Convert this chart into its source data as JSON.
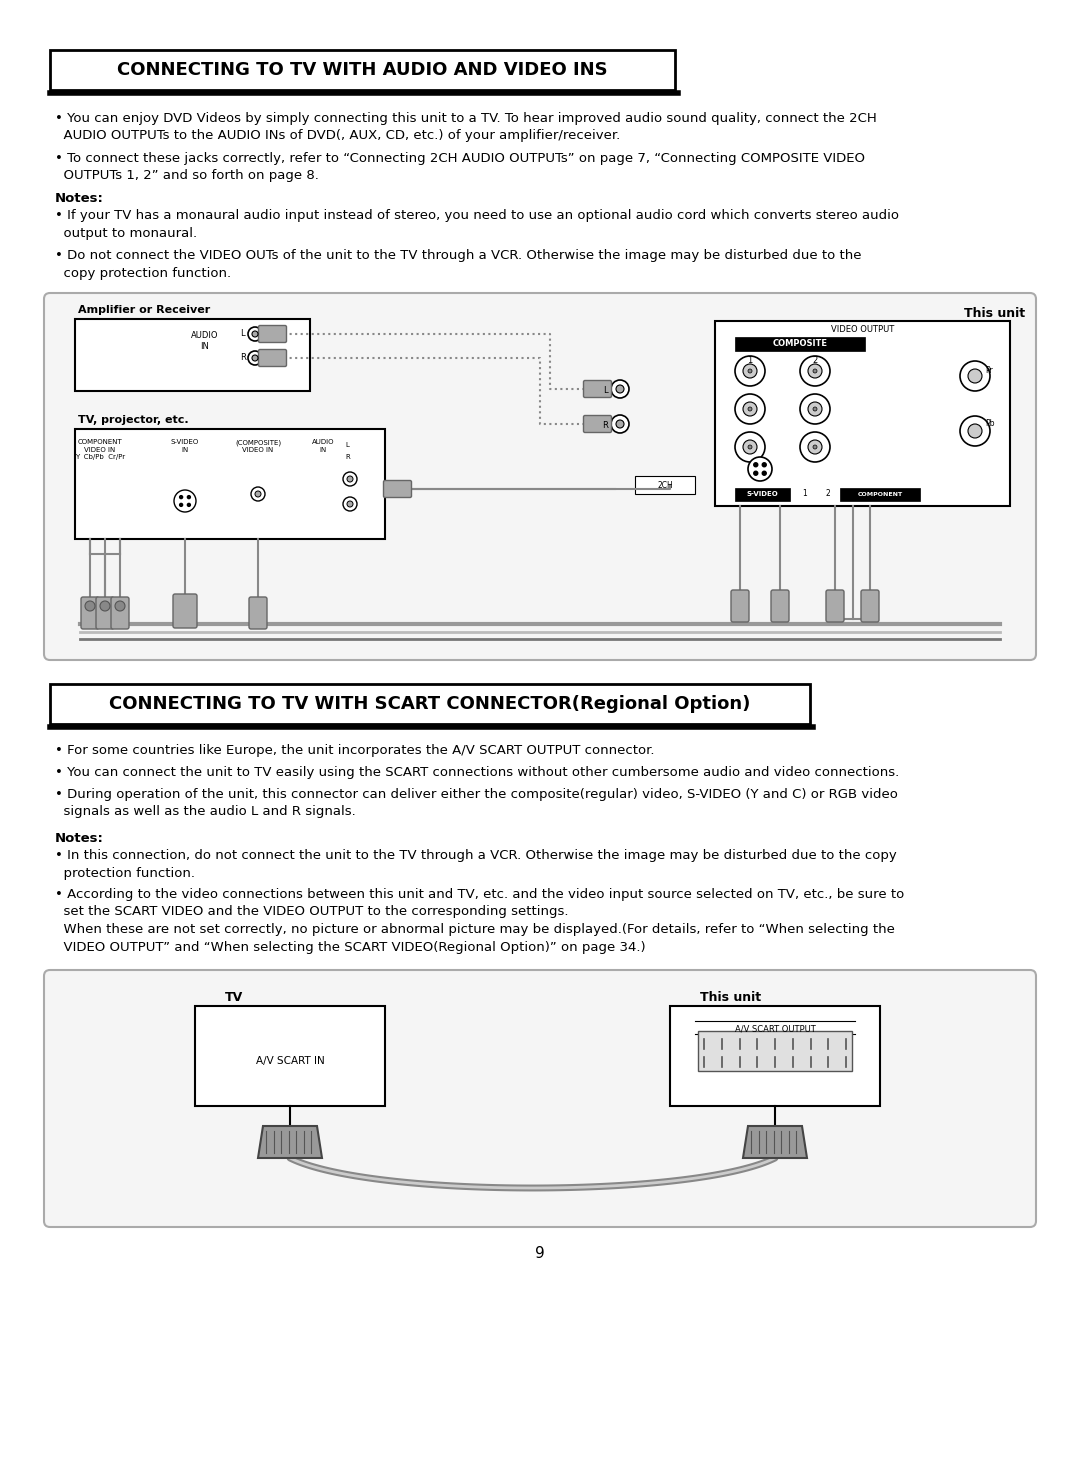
{
  "title1": "CONNECTING TO TV WITH AUDIO AND VIDEO INS",
  "title2": "CONNECTING TO TV WITH SCART CONNECTOR(Regional Option)",
  "bg_color": "#ffffff",
  "section1_bullets": [
    "• You can enjoy DVD Videos by simply connecting this unit to a TV. To hear improved audio sound quality, connect the 2CH\n  AUDIO OUTPUTs to the AUDIO INs of DVD(, AUX, CD, etc.) of your amplifier/receiver.",
    "• To connect these jacks correctly, refer to “Connecting 2CH AUDIO OUTPUTs” on page 7, “Connecting COMPOSITE VIDEO\n  OUTPUTs 1, 2” and so forth on page 8."
  ],
  "notes1_label": "Notes:",
  "notes1_bullets": [
    "• If your TV has a monaural audio input instead of stereo, you need to use an optional audio cord which converts stereo audio\n  output to monaural.",
    "• Do not connect the VIDEO OUTs of the unit to the TV through a VCR. Otherwise the image may be disturbed due to the\n  copy protection function."
  ],
  "section2_bullets": [
    "• For some countries like Europe, the unit incorporates the A/V SCART OUTPUT connector.",
    "• You can connect the unit to TV easily using the SCART connections without other cumbersome audio and video connections.",
    "• During operation of the unit, this connector can deliver either the composite(regular) video, S-VIDEO (Y and C) or RGB video\n  signals as well as the audio L and R signals."
  ],
  "notes2_label": "Notes:",
  "notes2_bullets": [
    "• In this connection, do not connect the unit to the TV through a VCR. Otherwise the image may be disturbed due to the copy\n  protection function.",
    "• According to the video connections between this unit and TV, etc. and the video input source selected on TV, etc., be sure to\n  set the SCART VIDEO and the VIDEO OUTPUT to the corresponding settings.\n  When these are not set correctly, no picture or abnormal picture may be displayed.(For details, refer to “When selecting the\n  VIDEO OUTPUT” and “When selecting the SCART VIDEO(Regional Option)” on page 34.)"
  ],
  "page_number": "9"
}
